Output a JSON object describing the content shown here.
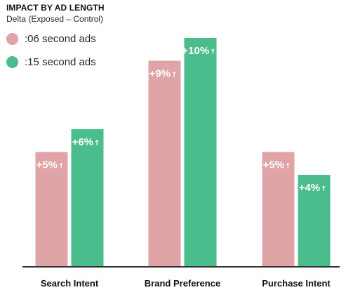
{
  "chart_data": {
    "type": "bar",
    "title": "IMPACT BY AD LENGTH",
    "subtitle": "Delta (Exposed – Control)",
    "categories": [
      "Search Intent",
      "Brand Preference",
      "Purchase Intent"
    ],
    "series": [
      {
        "name": ":06 second ads",
        "color": "#e0a3a6",
        "values": [
          5,
          9,
          5
        ],
        "labels": [
          "+5%",
          "+9%",
          "+5%"
        ]
      },
      {
        "name": ":15 second ads",
        "color": "#4bbd8c",
        "values": [
          6,
          10,
          4
        ],
        "labels": [
          "+6%",
          "+10%",
          "+4%"
        ]
      }
    ],
    "label_arrow": "↑",
    "ylim": [
      0,
      11
    ],
    "xlabel": "",
    "ylabel": "",
    "grid": false,
    "legend_position": "top-left",
    "axis_color": "#333333"
  }
}
